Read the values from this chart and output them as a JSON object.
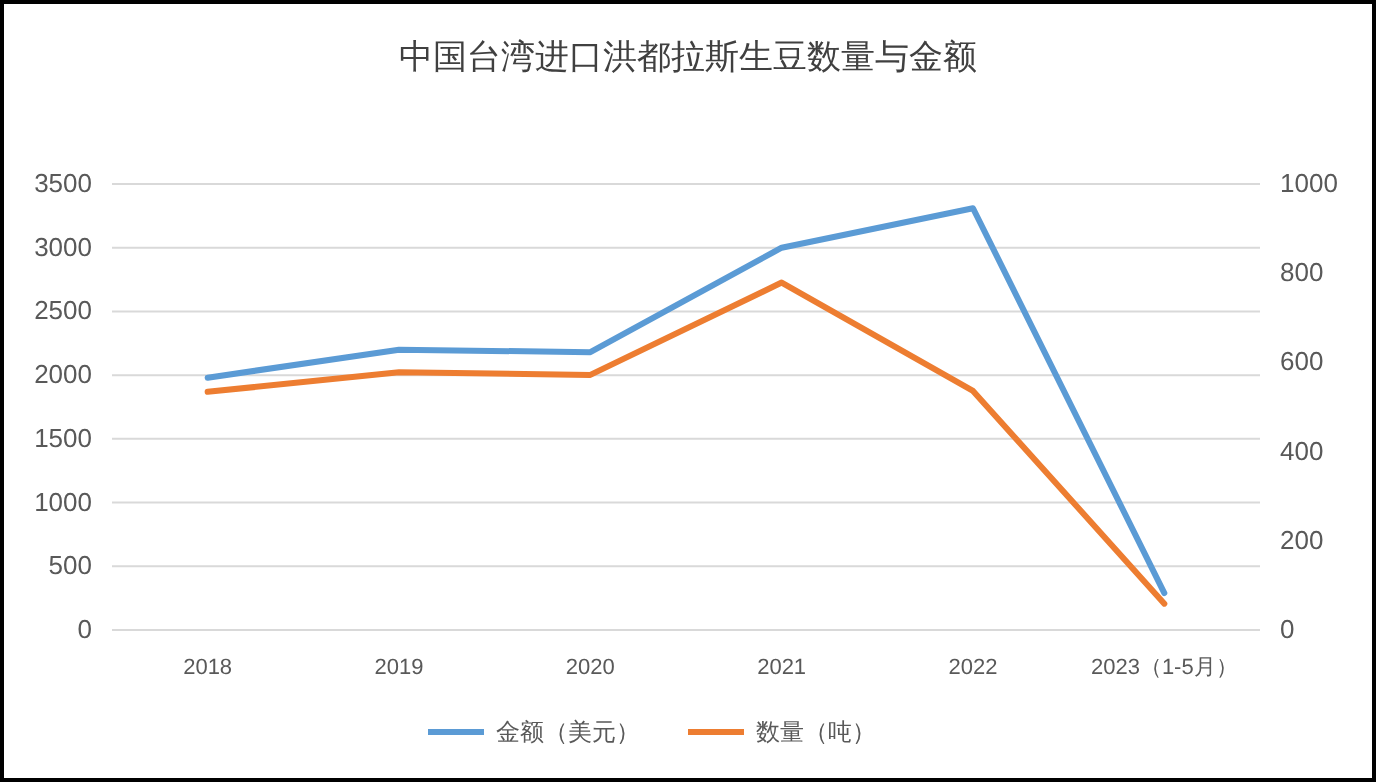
{
  "chart_data": {
    "type": "line",
    "title": "中国台湾进口洪都拉斯生豆数量与金额",
    "categories": [
      "2018",
      "2019",
      "2020",
      "2021",
      "2022",
      "2023（1-5月）"
    ],
    "series": [
      {
        "name": "金额（美元）",
        "color": "#5b9bd5",
        "values": [
          1980,
          2200,
          2180,
          3000,
          3310,
          290
        ]
      },
      {
        "name": "数量（吨）",
        "color": "#ed7d31",
        "values": [
          534,
          578,
          572,
          779,
          536,
          59
        ],
        "axis": "y2"
      }
    ],
    "ylim": [
      0,
      3500
    ],
    "yticks": [
      0,
      500,
      1000,
      1500,
      2000,
      2500,
      3000,
      3500
    ],
    "y2lim": [
      0,
      1000
    ],
    "y2ticks": [
      0,
      200,
      400,
      600,
      800,
      1000
    ],
    "grid": "y",
    "legend": "bottom",
    "marker": "none",
    "line_style": "solid"
  }
}
